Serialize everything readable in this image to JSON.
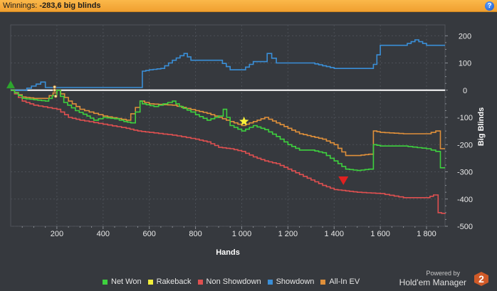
{
  "header": {
    "winnings_label": "Winnings:",
    "winnings_value": "-283,6 big blinds",
    "help_label": "?"
  },
  "brand": {
    "powered_by": "Powered by",
    "name": "Hold'em Manager",
    "logo": "2"
  },
  "colors": {
    "background": "#36393e",
    "grid": "#4a4e55",
    "zero_line": "#ffffff",
    "header": "#f5a73a"
  },
  "chart_data": {
    "type": "line",
    "xlabel": "Hands",
    "ylabel": "Big Blinds",
    "xlim": [
      0,
      1880
    ],
    "ylim": [
      -500,
      240
    ],
    "x_ticks": [
      200,
      400,
      600,
      800,
      1000,
      1200,
      1400,
      1600,
      1800
    ],
    "x_tick_labels": [
      "200",
      "400",
      "600",
      "800",
      "1 000",
      "1 200",
      "1 400",
      "1 600",
      "1 800"
    ],
    "y_ticks": [
      200,
      100,
      0,
      -100,
      -200,
      -300,
      -400,
      -500
    ],
    "y_tick_labels": [
      "200",
      "100",
      "0",
      "-100",
      "-200",
      "-300",
      "-400",
      "-500"
    ],
    "y_axis_side": "right",
    "grid": true,
    "legend_position": "bottom",
    "series": [
      {
        "name": "Net Won",
        "color": "#3ed13e",
        "x": [
          0,
          50,
          100,
          150,
          180,
          200,
          230,
          280,
          330,
          360,
          400,
          450,
          490,
          520,
          560,
          570,
          620,
          700,
          730,
          780,
          800,
          850,
          900,
          920,
          950,
          1000,
          1050,
          1100,
          1150,
          1200,
          1250,
          1300,
          1350,
          1400,
          1450,
          1500,
          1550,
          1570,
          1600,
          1700,
          1800,
          1840,
          1860,
          1880
        ],
        "values": [
          0,
          -30,
          -35,
          -40,
          -20,
          0,
          -45,
          -75,
          -95,
          -110,
          -100,
          -105,
          -115,
          -120,
          -40,
          -50,
          -60,
          -40,
          -60,
          -80,
          -90,
          -110,
          -95,
          -70,
          -130,
          -150,
          -130,
          -145,
          -170,
          -200,
          -220,
          -220,
          -230,
          -260,
          -290,
          -295,
          -290,
          -200,
          -205,
          -205,
          -215,
          -225,
          -285,
          -285
        ]
      },
      {
        "name": "Rakeback",
        "color": "#f1ee3a",
        "x": [],
        "values": []
      },
      {
        "name": "Non Showdown",
        "color": "#e05050",
        "x": [
          0,
          50,
          100,
          200,
          250,
          300,
          400,
          500,
          550,
          600,
          700,
          800,
          850,
          900,
          950,
          1000,
          1050,
          1100,
          1150,
          1200,
          1250,
          1300,
          1350,
          1400,
          1450,
          1500,
          1600,
          1700,
          1800,
          1830,
          1850,
          1880
        ],
        "values": [
          0,
          -40,
          -55,
          -70,
          -100,
          -110,
          -125,
          -140,
          -150,
          -155,
          -165,
          -180,
          -190,
          -210,
          -215,
          -225,
          -245,
          -260,
          -270,
          -290,
          -310,
          -330,
          -350,
          -365,
          -370,
          -375,
          -380,
          -395,
          -395,
          -385,
          -450,
          -455
        ]
      },
      {
        "name": "Showdown",
        "color": "#3a8fd8",
        "x": [
          0,
          50,
          130,
          150,
          200,
          250,
          300,
          350,
          400,
          450,
          500,
          550,
          570,
          600,
          650,
          700,
          750,
          780,
          800,
          850,
          900,
          950,
          1000,
          1050,
          1100,
          1110,
          1150,
          1200,
          1250,
          1300,
          1350,
          1400,
          1450,
          1500,
          1550,
          1570,
          1600,
          1700,
          1750,
          1800,
          1880
        ],
        "values": [
          0,
          0,
          30,
          10,
          10,
          10,
          10,
          10,
          10,
          10,
          10,
          10,
          70,
          75,
          80,
          110,
          135,
          110,
          110,
          110,
          110,
          75,
          75,
          105,
          105,
          135,
          100,
          100,
          100,
          100,
          90,
          80,
          80,
          80,
          80,
          95,
          165,
          165,
          185,
          165,
          165
        ]
      },
      {
        "name": "All-In EV",
        "color": "#e0903a",
        "x": [
          0,
          50,
          100,
          150,
          200,
          250,
          300,
          400,
          500,
          560,
          600,
          700,
          800,
          850,
          900,
          950,
          1000,
          1050,
          1100,
          1150,
          1200,
          1250,
          1300,
          1350,
          1400,
          1450,
          1500,
          1550,
          1570,
          1600,
          1700,
          1800,
          1840,
          1860,
          1880
        ],
        "values": [
          0,
          -25,
          -30,
          -30,
          0,
          -40,
          -70,
          -95,
          -110,
          -40,
          -50,
          -55,
          -75,
          -85,
          -100,
          -115,
          -130,
          -115,
          -100,
          -120,
          -140,
          -160,
          -170,
          -180,
          -200,
          -240,
          -240,
          -235,
          -150,
          -155,
          -160,
          -160,
          -150,
          -215,
          -215
        ]
      }
    ],
    "markers": [
      {
        "shape": "triangle-up",
        "color": "#2da52d",
        "x": 0,
        "y": 20
      },
      {
        "shape": "star",
        "color": "#f7f23a",
        "x": 1010,
        "y": -115
      },
      {
        "shape": "triangle-down",
        "color": "#e02020",
        "x": 1440,
        "y": -330
      }
    ]
  },
  "legend": [
    {
      "label": "Net Won",
      "color": "#3ed13e"
    },
    {
      "label": "Rakeback",
      "color": "#f1ee3a"
    },
    {
      "label": "Non Showdown",
      "color": "#e05050"
    },
    {
      "label": "Showdown",
      "color": "#3a8fd8"
    },
    {
      "label": "All-In EV",
      "color": "#e0903a"
    }
  ]
}
